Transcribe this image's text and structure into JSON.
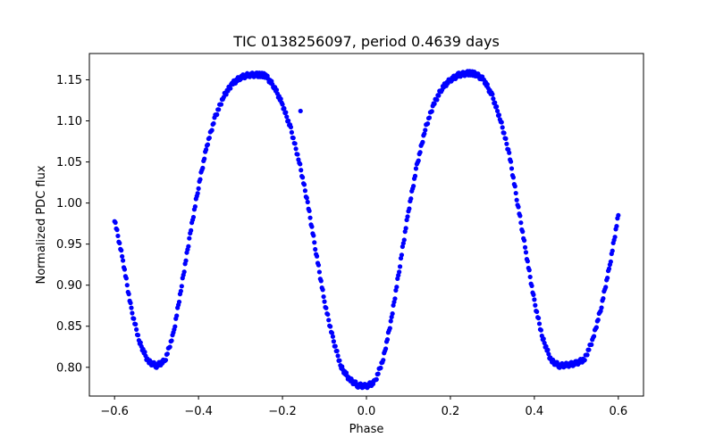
{
  "chart_data": {
    "type": "scatter",
    "title": "TIC 0138256097, period 0.4639 days",
    "xlabel": "Phase",
    "ylabel": "Normalized PDC flux",
    "xlim": [
      -0.66,
      0.66
    ],
    "ylim": [
      0.765,
      1.182
    ],
    "x_ticks": [
      -0.6,
      -0.4,
      -0.2,
      0.0,
      0.2,
      0.4,
      0.6
    ],
    "x_tick_labels": [
      "−0.6",
      "−0.4",
      "−0.2",
      "0.0",
      "0.2",
      "0.4",
      "0.6"
    ],
    "y_ticks": [
      0.8,
      0.85,
      0.9,
      0.95,
      1.0,
      1.05,
      1.1,
      1.15
    ],
    "y_tick_labels": [
      "0.80",
      "0.85",
      "0.90",
      "0.95",
      "1.00",
      "1.05",
      "1.10",
      "1.15"
    ],
    "marker_color": "#0000ff",
    "series": [
      {
        "name": "light curve",
        "x": [
          -0.6,
          -0.58,
          -0.56,
          -0.54,
          -0.52,
          -0.5,
          -0.48,
          -0.46,
          -0.44,
          -0.42,
          -0.4,
          -0.38,
          -0.36,
          -0.34,
          -0.32,
          -0.3,
          -0.28,
          -0.26,
          -0.25,
          -0.24,
          -0.22,
          -0.2,
          -0.18,
          -0.16,
          -0.14,
          -0.12,
          -0.1,
          -0.08,
          -0.06,
          -0.04,
          -0.02,
          0.0,
          0.02,
          0.04,
          0.06,
          0.08,
          0.1,
          0.12,
          0.14,
          0.16,
          0.18,
          0.2,
          0.22,
          0.24,
          0.25,
          0.26,
          0.28,
          0.3,
          0.32,
          0.34,
          0.36,
          0.38,
          0.4,
          0.42,
          0.44,
          0.46,
          0.48,
          0.5,
          0.52,
          0.54,
          0.56,
          0.58,
          0.6
        ],
        "y": [
          0.98,
          0.93,
          0.87,
          0.83,
          0.807,
          0.802,
          0.808,
          0.84,
          0.9,
          0.962,
          1.02,
          1.07,
          1.105,
          1.13,
          1.145,
          1.153,
          1.156,
          1.156,
          1.156,
          1.155,
          1.142,
          1.12,
          1.09,
          1.05,
          1.0,
          0.94,
          0.88,
          0.835,
          0.8,
          0.785,
          0.778,
          0.777,
          0.782,
          0.81,
          0.86,
          0.925,
          0.99,
          1.045,
          1.09,
          1.12,
          1.14,
          1.15,
          1.156,
          1.158,
          1.158,
          1.157,
          1.15,
          1.13,
          1.1,
          1.06,
          1.0,
          0.94,
          0.88,
          0.835,
          0.808,
          0.802,
          0.803,
          0.805,
          0.81,
          0.835,
          0.875,
          0.925,
          0.985
        ]
      },
      {
        "name": "outlier",
        "x": [
          -0.157
        ],
        "y": [
          1.112
        ]
      }
    ]
  }
}
